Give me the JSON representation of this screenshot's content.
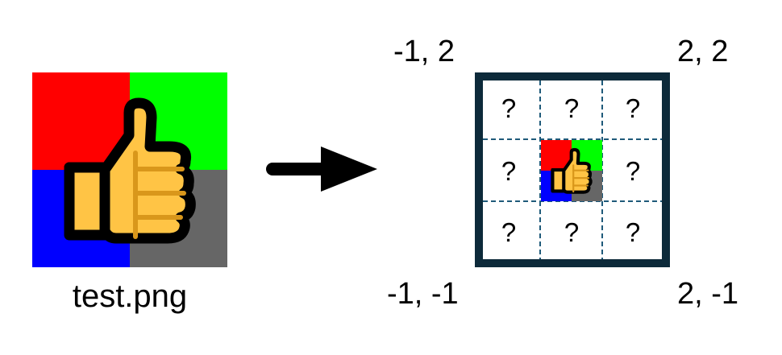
{
  "source": {
    "caption": "test.png",
    "quadrant_colors": {
      "top_left": "#ff0000",
      "top_right": "#00ff00",
      "bottom_left": "#0000ff",
      "bottom_right": "#666666"
    },
    "icon": "thumbs-up-icon"
  },
  "arrow": {
    "icon": "right-arrow-icon",
    "color": "#000000"
  },
  "grid": {
    "corners": {
      "top_left": "-1, 2",
      "top_right": "2, 2",
      "bottom_left": "-1, -1",
      "bottom_right": "2, -1"
    },
    "border_color": "#0d2a3a",
    "dashed_line_color": "#1f5a7a",
    "unknown_cell_label": "?",
    "cells": [
      {
        "row": 0,
        "col": 0,
        "content": "?"
      },
      {
        "row": 0,
        "col": 1,
        "content": "?"
      },
      {
        "row": 0,
        "col": 2,
        "content": "?"
      },
      {
        "row": 1,
        "col": 0,
        "content": "?"
      },
      {
        "row": 1,
        "col": 1,
        "content": "tile-image"
      },
      {
        "row": 1,
        "col": 2,
        "content": "?"
      },
      {
        "row": 2,
        "col": 0,
        "content": "?"
      },
      {
        "row": 2,
        "col": 1,
        "content": "?"
      },
      {
        "row": 2,
        "col": 2,
        "content": "?"
      }
    ]
  }
}
